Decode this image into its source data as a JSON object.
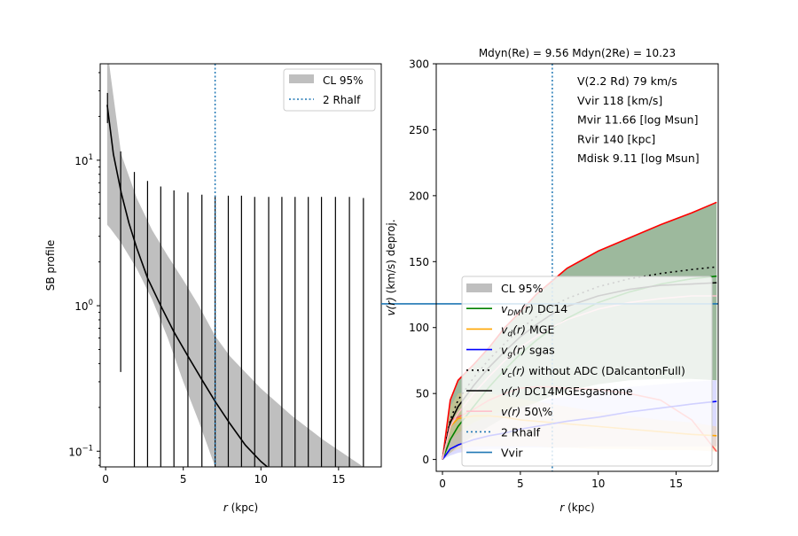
{
  "chart_data": [
    {
      "type": "line",
      "xlabel_sym": "r",
      "xlabel_rest": " (kpc)",
      "ylabel": "SB profile",
      "xlim": [
        -0.35,
        17.75
      ],
      "ylim": [
        0.078,
        46
      ],
      "yscale": "log",
      "xticks": [
        0,
        5,
        10,
        15
      ],
      "yticks": [
        {
          "value": 0.1,
          "base": "10",
          "exp": "−1"
        },
        {
          "value": 1,
          "base": "10",
          "exp": "0"
        },
        {
          "value": 10,
          "base": "10",
          "exp": "1"
        }
      ],
      "grid": false,
      "model": {
        "x": [
          0.1,
          0.5,
          1,
          1.5,
          2,
          2.7,
          3.55,
          4.4,
          5.3,
          6.2,
          7.05,
          8,
          9,
          10,
          10.6
        ],
        "y": [
          24,
          11,
          6,
          3.7,
          2.5,
          1.55,
          1.0,
          0.66,
          0.45,
          0.31,
          0.22,
          0.155,
          0.11,
          0.085,
          0.075
        ]
      },
      "band": {
        "name": "CL 95%",
        "x": [
          0.1,
          0.3,
          1,
          2,
          3,
          4,
          5,
          6,
          7.05,
          8,
          10,
          12,
          14,
          16.6
        ],
        "upper": [
          60,
          40,
          11,
          5.5,
          3.3,
          2.2,
          1.5,
          1.0,
          0.62,
          0.45,
          0.27,
          0.175,
          0.12,
          0.078
        ],
        "lower": [
          3.6,
          3.4,
          2.7,
          1.8,
          1.1,
          0.6,
          0.3,
          0.16,
          0.078,
          0.078,
          0.078,
          0.078,
          0.078,
          0.078
        ]
      },
      "errorbars": {
        "x": [
          0.12,
          0.97,
          1.85,
          2.7,
          3.55,
          4.4,
          5.3,
          6.2,
          7.05,
          7.9,
          8.75,
          9.6,
          10.5,
          11.35,
          12.2,
          13.05,
          13.9,
          14.8,
          15.7,
          16.6
        ],
        "upper": [
          29,
          11.5,
          8.3,
          7.2,
          6.6,
          6.2,
          6.0,
          5.8,
          5.7,
          5.7,
          5.7,
          5.6,
          5.6,
          5.6,
          5.6,
          5.6,
          5.6,
          5.6,
          5.6,
          5.5
        ],
        "lower": [
          18,
          0.35,
          0.05,
          0.05,
          0.05,
          0.05,
          0.05,
          0.05,
          0.05,
          0.05,
          0.05,
          0.05,
          0.05,
          0.05,
          0.05,
          0.05,
          0.05,
          0.05,
          0.05,
          0.05
        ]
      },
      "vline": {
        "name": "2 Rhalf",
        "x": 7.05,
        "color": "#1f77b4"
      },
      "legend": {
        "position": "top-right",
        "entries": [
          "CL 95%",
          "2 Rhalf"
        ]
      }
    },
    {
      "type": "line",
      "title": "Mdyn(Re) = 9.56  Mdyn(2Re) = 10.23",
      "xlabel_sym": "r",
      "xlabel_rest": " (kpc)",
      "ylabel_sym": "v",
      "ylabel_rest": "(r) (km/s) deproj.",
      "ylabel_arg": "(r)",
      "ylabel_tail": " (km/s) deproj.",
      "xlim": [
        -0.4,
        17.7
      ],
      "ylim": [
        -9,
        300
      ],
      "xticks": [
        0,
        5,
        10,
        15
      ],
      "yticks": [
        0,
        50,
        100,
        150,
        200,
        250,
        300
      ],
      "grid": false,
      "annotations": [
        "V(2.2 Rd) 79 km/s",
        "Vvir 118 [km/s]",
        "Mvir 11.66 [log Msun]",
        "Rvir 140 [kpc]",
        "Mdisk 9.11 [log Msun]"
      ],
      "x": [
        0,
        0.5,
        1,
        2,
        3,
        4,
        5,
        6,
        7,
        8,
        10,
        12,
        14,
        16,
        17.6
      ],
      "bands": [
        {
          "color": "#4d7f4d",
          "opacity": 0.55,
          "upper": [
            0,
            45,
            60,
            72,
            85,
            100,
            112,
            125,
            135,
            145,
            158,
            168,
            178,
            187,
            195
          ],
          "lower": [
            0,
            5,
            10,
            18,
            25,
            32,
            38,
            43,
            48,
            52,
            57,
            60,
            61,
            61,
            60
          ]
        },
        {
          "color": "#b0b0ff",
          "opacity": 0.45,
          "upper": [
            0,
            15,
            20,
            28,
            33,
            37,
            40,
            43,
            46,
            48,
            52,
            55,
            57,
            59,
            60
          ],
          "lower": [
            0,
            3,
            5,
            7,
            8,
            8,
            9,
            9,
            9,
            9,
            10,
            10,
            10,
            10,
            10
          ]
        },
        {
          "color": "#ffd27f",
          "opacity": 0.35,
          "upper": [
            0,
            40,
            50,
            52,
            50,
            48,
            46,
            44,
            42,
            40,
            36,
            33,
            30,
            28,
            25
          ],
          "lower": [
            0,
            5,
            8,
            10,
            10,
            10,
            10,
            10,
            9,
            9,
            8,
            8,
            7,
            7,
            6
          ]
        }
      ],
      "series": [
        {
          "name": "red-upper",
          "color": "#ff0000",
          "dash": "",
          "values": [
            0,
            45,
            60,
            72,
            85,
            100,
            112,
            125,
            135,
            145,
            158,
            168,
            178,
            187,
            195
          ]
        },
        {
          "name": "red-lower",
          "color": "#ff6060",
          "dash": "",
          "values": [
            0,
            30,
            32,
            38,
            45,
            50,
            54,
            55,
            55,
            54,
            53,
            50,
            45,
            30,
            6
          ]
        },
        {
          "name": "v_DM(r) DC14",
          "color": "#008000",
          "dash": "",
          "values": [
            0,
            15,
            25,
            40,
            55,
            68,
            80,
            90,
            99,
            107,
            119,
            127,
            133,
            137,
            139
          ]
        },
        {
          "name": "v_d(r) MGE",
          "color": "#ffa500",
          "dash": "",
          "values": [
            0,
            25,
            31,
            33,
            33,
            32,
            30,
            29,
            28,
            27,
            25,
            23,
            21,
            19,
            18
          ]
        },
        {
          "name": "v_g(r) sgas",
          "color": "#0000ff",
          "dash": "",
          "values": [
            0,
            8,
            11,
            15,
            18,
            20,
            23,
            25,
            27,
            29,
            32,
            36,
            39,
            42,
            44
          ]
        },
        {
          "name": "v_c(r) without ADC (DalcantonFull)",
          "color": "#000000",
          "dash": "2,4",
          "values": [
            0,
            30,
            45,
            62,
            76,
            88,
            99,
            108,
            116,
            122,
            131,
            137,
            141,
            144,
            146
          ]
        },
        {
          "name": "v(r) DC14MGEsgasnone",
          "color": "#000000",
          "dash": "",
          "values": [
            0,
            28,
            40,
            56,
            70,
            82,
            93,
            102,
            110,
            116,
            124,
            129,
            132,
            133,
            134
          ]
        },
        {
          "name": "v(r) 50\\%",
          "color": "#ffc0cb",
          "dash": "",
          "values": [
            0,
            25,
            35,
            50,
            63,
            75,
            85,
            93,
            100,
            106,
            114,
            119,
            122,
            124,
            124
          ]
        }
      ],
      "vline": {
        "name": "2 Rhalf",
        "x": 7.05,
        "color": "#1f77b4"
      },
      "hline": {
        "name": "Vvir",
        "y": 118,
        "color": "#1f77b4"
      },
      "legend": {
        "position": "lower-right",
        "entries": [
          {
            "kind": "patch",
            "color": "#bfbfbf",
            "sym": "",
            "sub": "",
            "arg": "",
            "text": "CL 95%"
          },
          {
            "kind": "line",
            "color": "#008000",
            "dash": "",
            "sym": "v",
            "sub": "DM",
            "arg": "(r)",
            "text": " DC14"
          },
          {
            "kind": "line",
            "color": "#ffa500",
            "dash": "",
            "sym": "v",
            "sub": "d",
            "arg": "(r)",
            "text": " MGE"
          },
          {
            "kind": "line",
            "color": "#0000ff",
            "dash": "",
            "sym": "v",
            "sub": "g",
            "arg": "(r)",
            "text": " sgas"
          },
          {
            "kind": "line",
            "color": "#000000",
            "dash": "2,4",
            "sym": "v",
            "sub": "c",
            "arg": "(r)",
            "text": " without ADC (DalcantonFull)"
          },
          {
            "kind": "line",
            "color": "#000000",
            "dash": "",
            "sym": "v",
            "sub": "",
            "arg": "(r)",
            "text": " DC14MGEsgasnone"
          },
          {
            "kind": "line",
            "color": "#ffc0cb",
            "dash": "",
            "sym": "v",
            "sub": "",
            "arg": "(r)",
            "text": " 50\\%"
          },
          {
            "kind": "line",
            "color": "#1f77b4",
            "dash": "2,3",
            "sym": "",
            "sub": "",
            "arg": "",
            "text": "2 Rhalf"
          },
          {
            "kind": "line",
            "color": "#1f77b4",
            "dash": "",
            "sym": "",
            "sub": "",
            "arg": "",
            "text": "Vvir"
          }
        ]
      }
    }
  ]
}
